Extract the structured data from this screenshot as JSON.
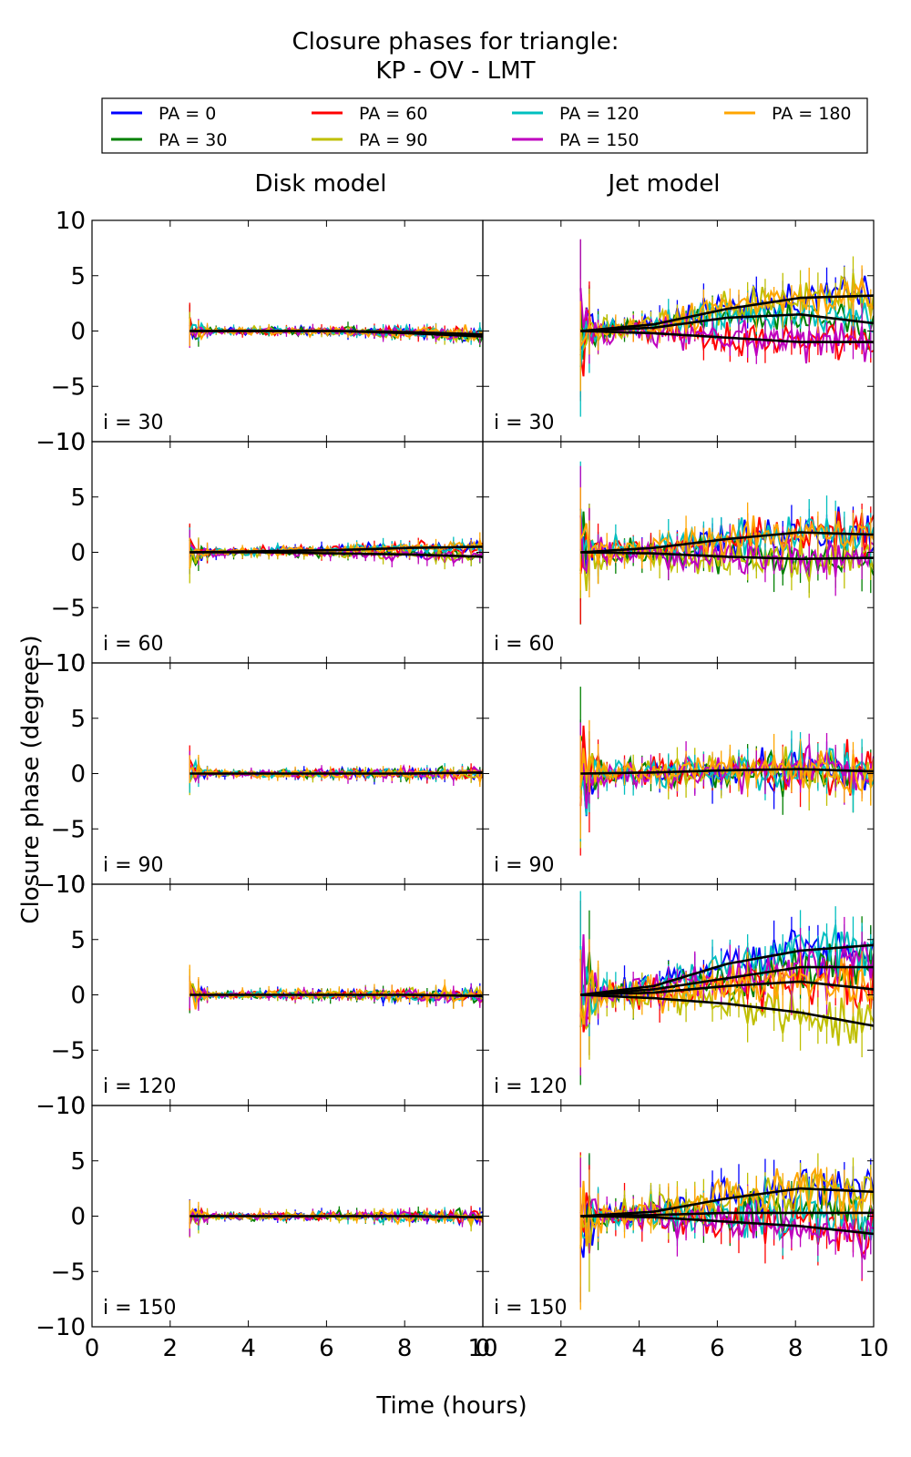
{
  "title_lines": [
    "Closure phases for triangle:",
    "KP - OV - LMT"
  ],
  "legend": [
    {
      "label": "PA = 0",
      "color": "#0000ff"
    },
    {
      "label": "PA = 30",
      "color": "#008000"
    },
    {
      "label": "PA = 60",
      "color": "#ff0000"
    },
    {
      "label": "PA = 90",
      "color": "#bfbf00"
    },
    {
      "label": "PA = 120",
      "color": "#00bfbf"
    },
    {
      "label": "PA = 150",
      "color": "#bf00bf"
    },
    {
      "label": "PA = 180",
      "color": "#ffa500"
    }
  ],
  "columns": [
    "Disk model",
    "Jet model"
  ],
  "rows": [
    "i = 30",
    "i = 60",
    "i = 90",
    "i = 120",
    "i = 150"
  ],
  "xlabel": "Time (hours)",
  "ylabel": "Closure phase (degrees)",
  "xticks": [
    "0",
    "2",
    "4",
    "6",
    "8",
    "10"
  ],
  "yticks": [
    "−10",
    "−5",
    "0",
    "5",
    "10"
  ],
  "chart_data": {
    "type": "line",
    "xlim": [
      0,
      10
    ],
    "ylim": [
      -10,
      10
    ],
    "x_start": 2.5,
    "x_end": 10,
    "panels": [
      {
        "column": "Disk model",
        "row": "i = 30",
        "model_curves": [
          [
            0,
            0,
            0,
            -0.1,
            -0.3
          ],
          [
            0,
            0,
            0,
            -0.2,
            -0.5
          ]
        ],
        "noise_scale": 0.35
      },
      {
        "column": "Disk model",
        "row": "i = 60",
        "model_curves": [
          [
            0,
            0.1,
            0.2,
            0.4,
            0.5
          ],
          [
            0,
            0,
            -0.1,
            -0.2,
            -0.4
          ]
        ],
        "noise_scale": 0.4
      },
      {
        "column": "Disk model",
        "row": "i = 90",
        "model_curves": [
          [
            0,
            0,
            0,
            0,
            0.1
          ]
        ],
        "noise_scale": 0.35
      },
      {
        "column": "Disk model",
        "row": "i = 120",
        "model_curves": [
          [
            0,
            0,
            0,
            0,
            -0.1
          ]
        ],
        "noise_scale": 0.4
      },
      {
        "column": "Disk model",
        "row": "i = 150",
        "model_curves": [
          [
            0,
            0,
            0,
            0,
            -0.1
          ]
        ],
        "noise_scale": 0.35
      },
      {
        "column": "Jet model",
        "row": "i = 30",
        "model_curves": [
          [
            0,
            0.6,
            2.0,
            3.0,
            3.2
          ],
          [
            0,
            0.3,
            1.2,
            1.5,
            0.7
          ],
          [
            0,
            -0.2,
            -0.6,
            -1.0,
            -1.0
          ]
        ],
        "noise_scale": 1.2
      },
      {
        "column": "Jet model",
        "row": "i = 60",
        "model_curves": [
          [
            0,
            0.4,
            1.2,
            1.8,
            1.6
          ],
          [
            0,
            -0.1,
            -0.4,
            -0.6,
            -0.5
          ]
        ],
        "noise_scale": 1.3
      },
      {
        "column": "Jet model",
        "row": "i = 90",
        "model_curves": [
          [
            0,
            0.1,
            0.3,
            0.4,
            0.2
          ]
        ],
        "noise_scale": 1.3
      },
      {
        "column": "Jet model",
        "row": "i = 120",
        "model_curves": [
          [
            0,
            0.8,
            2.8,
            4.0,
            4.5
          ],
          [
            0,
            0.5,
            1.5,
            2.5,
            2.5
          ],
          [
            0,
            0.2,
            0.8,
            1.2,
            0.5
          ],
          [
            0,
            -0.3,
            -0.8,
            -1.6,
            -2.8
          ]
        ],
        "noise_scale": 1.5
      },
      {
        "column": "Jet model",
        "row": "i = 150",
        "model_curves": [
          [
            0,
            0.4,
            1.6,
            2.5,
            2.2
          ],
          [
            0,
            0.1,
            0.3,
            0.3,
            0.3
          ],
          [
            0,
            -0.1,
            -0.5,
            -0.9,
            -1.6
          ]
        ],
        "noise_scale": 1.5
      }
    ]
  }
}
